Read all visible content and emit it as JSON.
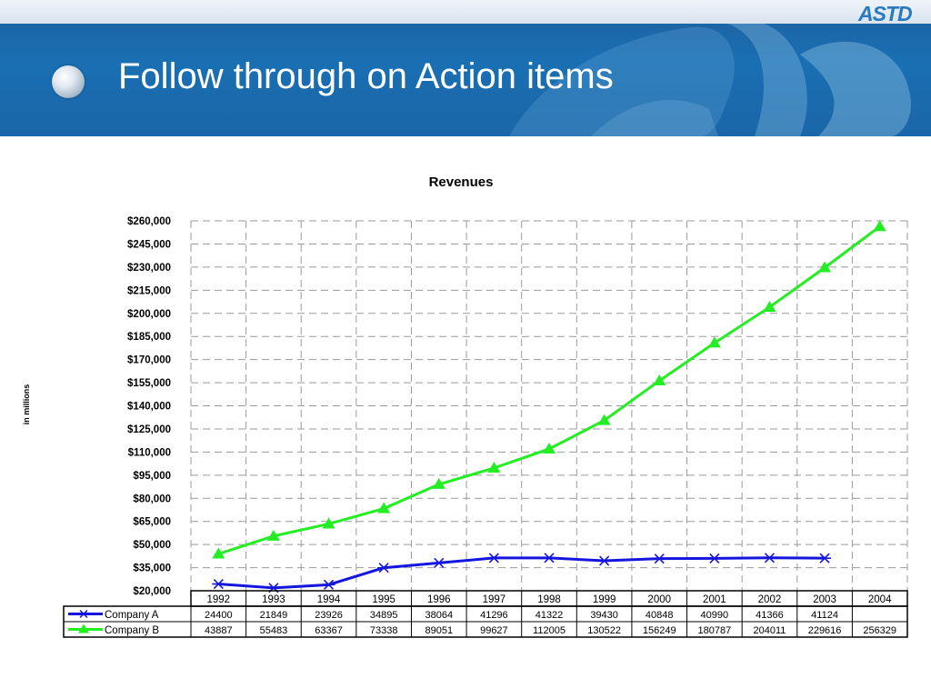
{
  "slide": {
    "title": "Follow through on Action items",
    "logo_text": "ASTD"
  },
  "chart_data": {
    "type": "line",
    "title": "Revenues",
    "ylabel": "in millions",
    "xlabel": "",
    "categories": [
      "1992",
      "1993",
      "1994",
      "1995",
      "1996",
      "1997",
      "1998",
      "1999",
      "2000",
      "2001",
      "2002",
      "2003",
      "2004"
    ],
    "ylim": [
      20000,
      260000
    ],
    "yticks": [
      "$260,000",
      "$245,000",
      "$230,000",
      "$215,000",
      "$200,000",
      "$185,000",
      "$170,000",
      "$155,000",
      "$140,000",
      "$125,000",
      "$110,000",
      "$95,000",
      "$80,000",
      "$65,000",
      "$50,000",
      "$35,000",
      "$20,000"
    ],
    "grid": true,
    "legend": "data-table",
    "series": [
      {
        "name": "Company A",
        "color": "#1515e0",
        "marker": "asterisk",
        "values": [
          24400,
          21849,
          23926,
          34895,
          38064,
          41296,
          41322,
          39430,
          40848,
          40990,
          41366,
          41124,
          null
        ]
      },
      {
        "name": "Company B",
        "color": "#22ee22",
        "marker": "triangle",
        "values": [
          43887,
          55483,
          63367,
          73338,
          89051,
          99627,
          112005,
          130522,
          156249,
          180787,
          204011,
          229616,
          256329
        ]
      }
    ]
  },
  "table": {
    "years": [
      "1992",
      "1993",
      "1994",
      "1995",
      "1996",
      "1997",
      "1998",
      "1999",
      "2000",
      "2001",
      "2002",
      "2003",
      "2004"
    ],
    "rows": [
      {
        "label": "Company A",
        "cells": [
          "24400",
          "21849",
          "23926",
          "34895",
          "38064",
          "41296",
          "41322",
          "39430",
          "40848",
          "40990",
          "41366",
          "41124",
          ""
        ]
      },
      {
        "label": "Company B",
        "cells": [
          "43887",
          "55483",
          "63367",
          "73338",
          "89051",
          "99627",
          "112005",
          "130522",
          "156249",
          "180787",
          "204011",
          "229616",
          "256329"
        ]
      }
    ]
  }
}
